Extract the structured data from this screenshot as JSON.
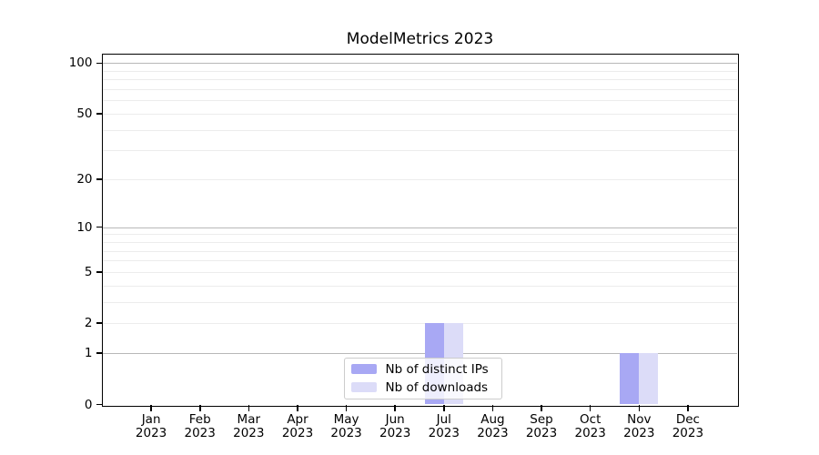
{
  "title": "ModelMetrics 2023",
  "chart_data": {
    "type": "bar",
    "title": "ModelMetrics 2023",
    "categories": [
      "Jan 2023",
      "Feb 2023",
      "Mar 2023",
      "Apr 2023",
      "May 2023",
      "Jun 2023",
      "Jul 2023",
      "Aug 2023",
      "Sep 2023",
      "Oct 2023",
      "Nov 2023",
      "Dec 2023"
    ],
    "series": [
      {
        "name": "Nb of distinct IPs",
        "color": "#a8a8f4",
        "values": [
          0,
          0,
          0,
          0,
          0,
          0,
          2,
          0,
          0,
          0,
          1,
          0
        ]
      },
      {
        "name": "Nb of downloads",
        "color": "#dcdcf8",
        "values": [
          0,
          0,
          0,
          0,
          0,
          0,
          2,
          0,
          0,
          0,
          1,
          0
        ]
      }
    ],
    "xlabel": "",
    "ylabel": "",
    "yscale": "log1p",
    "yticks": [
      0,
      1,
      2,
      5,
      10,
      20,
      50,
      100
    ],
    "ylim": [
      0,
      113
    ],
    "grid": "horizontal",
    "legend_position": "lower-center-inside",
    "colors": {
      "major_grid": "#b8b8b8",
      "minor_grid": "#ececec",
      "spine": "#000000",
      "tick_text": "#000000",
      "legend_border": "#cccccc"
    }
  }
}
